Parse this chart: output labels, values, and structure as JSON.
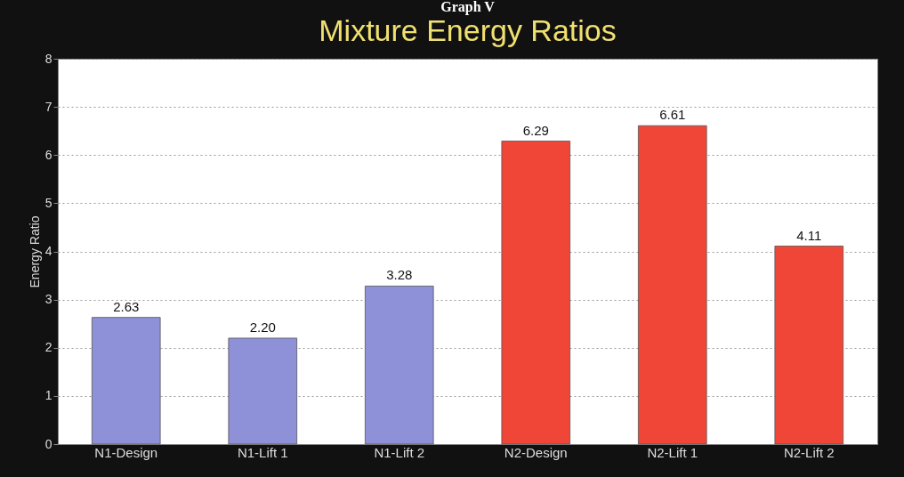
{
  "chart_data": {
    "type": "bar",
    "title": "Mixture Energy Ratios",
    "ylabel": "Energy Ratio",
    "annotations": [
      "Graph V"
    ],
    "categories": [
      "N1-Design",
      "N1-Lift 1",
      "N1-Lift 2",
      "N2-Design",
      "N2-Lift 1",
      "N2-Lift 2"
    ],
    "values": [
      2.63,
      2.2,
      3.28,
      6.29,
      6.61,
      4.11
    ],
    "colors": [
      "#8e90d8",
      "#8e90d8",
      "#8e90d8",
      "#f04638",
      "#f04638",
      "#f04638"
    ],
    "value_labels": [
      "2.63",
      "2.20",
      "3.28",
      "6.29",
      "6.61",
      "4.11"
    ],
    "ylim": [
      0,
      8
    ],
    "yticks": [
      0,
      1,
      2,
      3,
      4,
      5,
      6,
      7,
      8
    ],
    "grid": "y"
  }
}
